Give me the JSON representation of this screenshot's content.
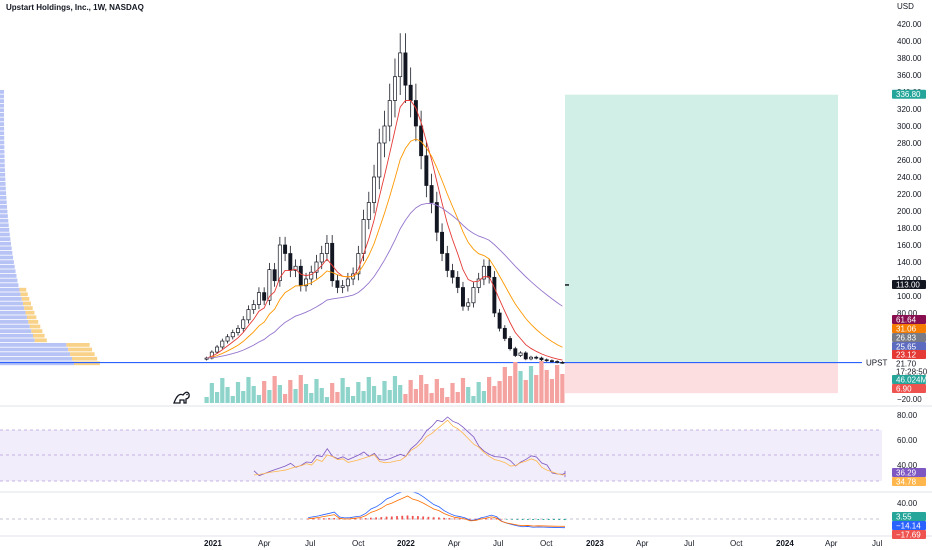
{
  "header": {
    "title": "Upstart Holdings, Inc., 1W, NASDAQ",
    "currency": "USD",
    "symbol": "UPST"
  },
  "colors": {
    "up": "#26a69a",
    "down": "#ef5350",
    "price_line": "#2962ff",
    "ema_fast": "#e53935",
    "ema_mid": "#ff9800",
    "ema_slow": "#9575cd",
    "target_zone": "#d1eee7",
    "stop_zone": "#fcdde0",
    "rsi": "#7e57c2",
    "rsi_ma": "#ffb74d",
    "macd": "#2962ff",
    "signal": "#ff6d00"
  },
  "price_axis": {
    "ticks": [
      "420.00",
      "400.00",
      "380.00",
      "360.00",
      "340.00",
      "320.00",
      "300.00",
      "280.00",
      "260.00",
      "240.00",
      "220.00",
      "200.00",
      "180.00",
      "160.00",
      "140.00",
      "120.00",
      "100.00",
      "80.00",
      "−20.00"
    ],
    "badges": [
      {
        "text": "336.80",
        "color": "#26a69a",
        "value": 336.8
      },
      {
        "text": "113.00",
        "color": "#131722",
        "value": 113
      },
      {
        "text": "61.64",
        "color": "#880e4f",
        "value": 61.64
      },
      {
        "text": "31.06",
        "color": "#f57c00",
        "value": 31.06
      },
      {
        "text": "26.83",
        "color": "#787b86",
        "value": 26.83
      },
      {
        "text": "25.65",
        "color": "#5c6bc0",
        "value": 25.65
      },
      {
        "text": "23.12",
        "color": "#e53935",
        "value": 23.12
      },
      {
        "text": "21.70",
        "color": "#ffffff",
        "value": 21.7
      },
      {
        "text": "17:28:50",
        "color": "#ffffff",
        "value": 18
      },
      {
        "text": "46.024M",
        "color": "#26a69a",
        "value": 6
      },
      {
        "text": "6.90",
        "color": "#ef5350",
        "value": 6.9
      }
    ]
  },
  "rsi_axis": {
    "ticks": [
      "80.00",
      "60.00",
      "40.00"
    ],
    "badges": [
      {
        "text": "36.29",
        "color": "#7e57c2"
      },
      {
        "text": "34.78",
        "color": "#ffb74d"
      }
    ]
  },
  "macd_axis": {
    "ticks": [
      "40.00"
    ],
    "badges": [
      {
        "text": "3.55",
        "color": "#26a69a"
      },
      {
        "text": "−14.14",
        "color": "#2962ff"
      },
      {
        "text": "−17.69",
        "color": "#ef5350"
      }
    ]
  },
  "time_axis": [
    "2021",
    "Apr",
    "Jul",
    "Oct",
    "2022",
    "Apr",
    "Jul",
    "Oct",
    "2023",
    "Apr",
    "Jul",
    "Oct",
    "2024",
    "Apr",
    "Jul"
  ],
  "chart_data": {
    "type": "candlestick",
    "title": "Upstart Holdings, Inc., 1W, NASDAQ",
    "ylim": [
      -20,
      430
    ],
    "current_price": 21.7,
    "position": {
      "entry": 21.7,
      "target": 336.8,
      "stop": 6.9
    },
    "weekly_close_path": [
      27,
      34,
      40,
      47,
      52,
      57,
      62,
      72,
      84,
      90,
      104,
      95,
      131,
      118,
      160,
      150,
      130,
      135,
      112,
      120,
      128,
      140,
      150,
      162,
      118,
      110,
      112,
      120,
      126,
      150,
      190,
      210,
      240,
      280,
      300,
      330,
      358,
      386,
      348,
      330,
      300,
      265,
      230,
      210,
      175,
      150,
      130,
      122,
      110,
      88,
      92,
      110,
      120,
      135,
      122,
      80,
      62,
      50,
      38,
      30,
      33,
      26,
      28,
      27,
      25,
      24,
      23,
      22,
      21.7
    ]
  }
}
